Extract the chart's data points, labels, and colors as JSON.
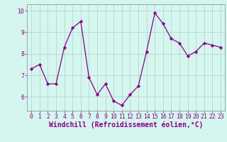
{
  "x": [
    0,
    1,
    2,
    3,
    4,
    5,
    6,
    7,
    8,
    9,
    10,
    11,
    12,
    13,
    14,
    15,
    16,
    17,
    18,
    19,
    20,
    21,
    22,
    23
  ],
  "y": [
    7.3,
    7.5,
    6.6,
    6.6,
    8.3,
    9.2,
    9.5,
    6.9,
    6.1,
    6.6,
    5.8,
    5.6,
    6.1,
    6.5,
    8.1,
    9.9,
    9.4,
    8.7,
    8.5,
    7.9,
    8.1,
    8.5,
    8.4,
    8.3
  ],
  "line_color": "#880088",
  "marker": "D",
  "marker_size": 2.2,
  "bg_color": "#d5f5ef",
  "grid_color": "#b0d8d0",
  "xlabel": "Windchill (Refroidissement éolien,°C)",
  "xlabel_fontsize": 7.0,
  "ylabel_ticks": [
    6,
    7,
    8,
    9,
    10
  ],
  "xlim": [
    -0.5,
    23.5
  ],
  "ylim": [
    5.35,
    10.3
  ],
  "xtick_labels": [
    "0",
    "1",
    "2",
    "3",
    "4",
    "5",
    "6",
    "7",
    "8",
    "9",
    "10",
    "11",
    "12",
    "13",
    "14",
    "15",
    "16",
    "17",
    "18",
    "19",
    "20",
    "21",
    "22",
    "23"
  ],
  "tick_fontsize": 5.8,
  "spine_color": "#888888",
  "tick_color": "#880088",
  "label_color": "#880088"
}
